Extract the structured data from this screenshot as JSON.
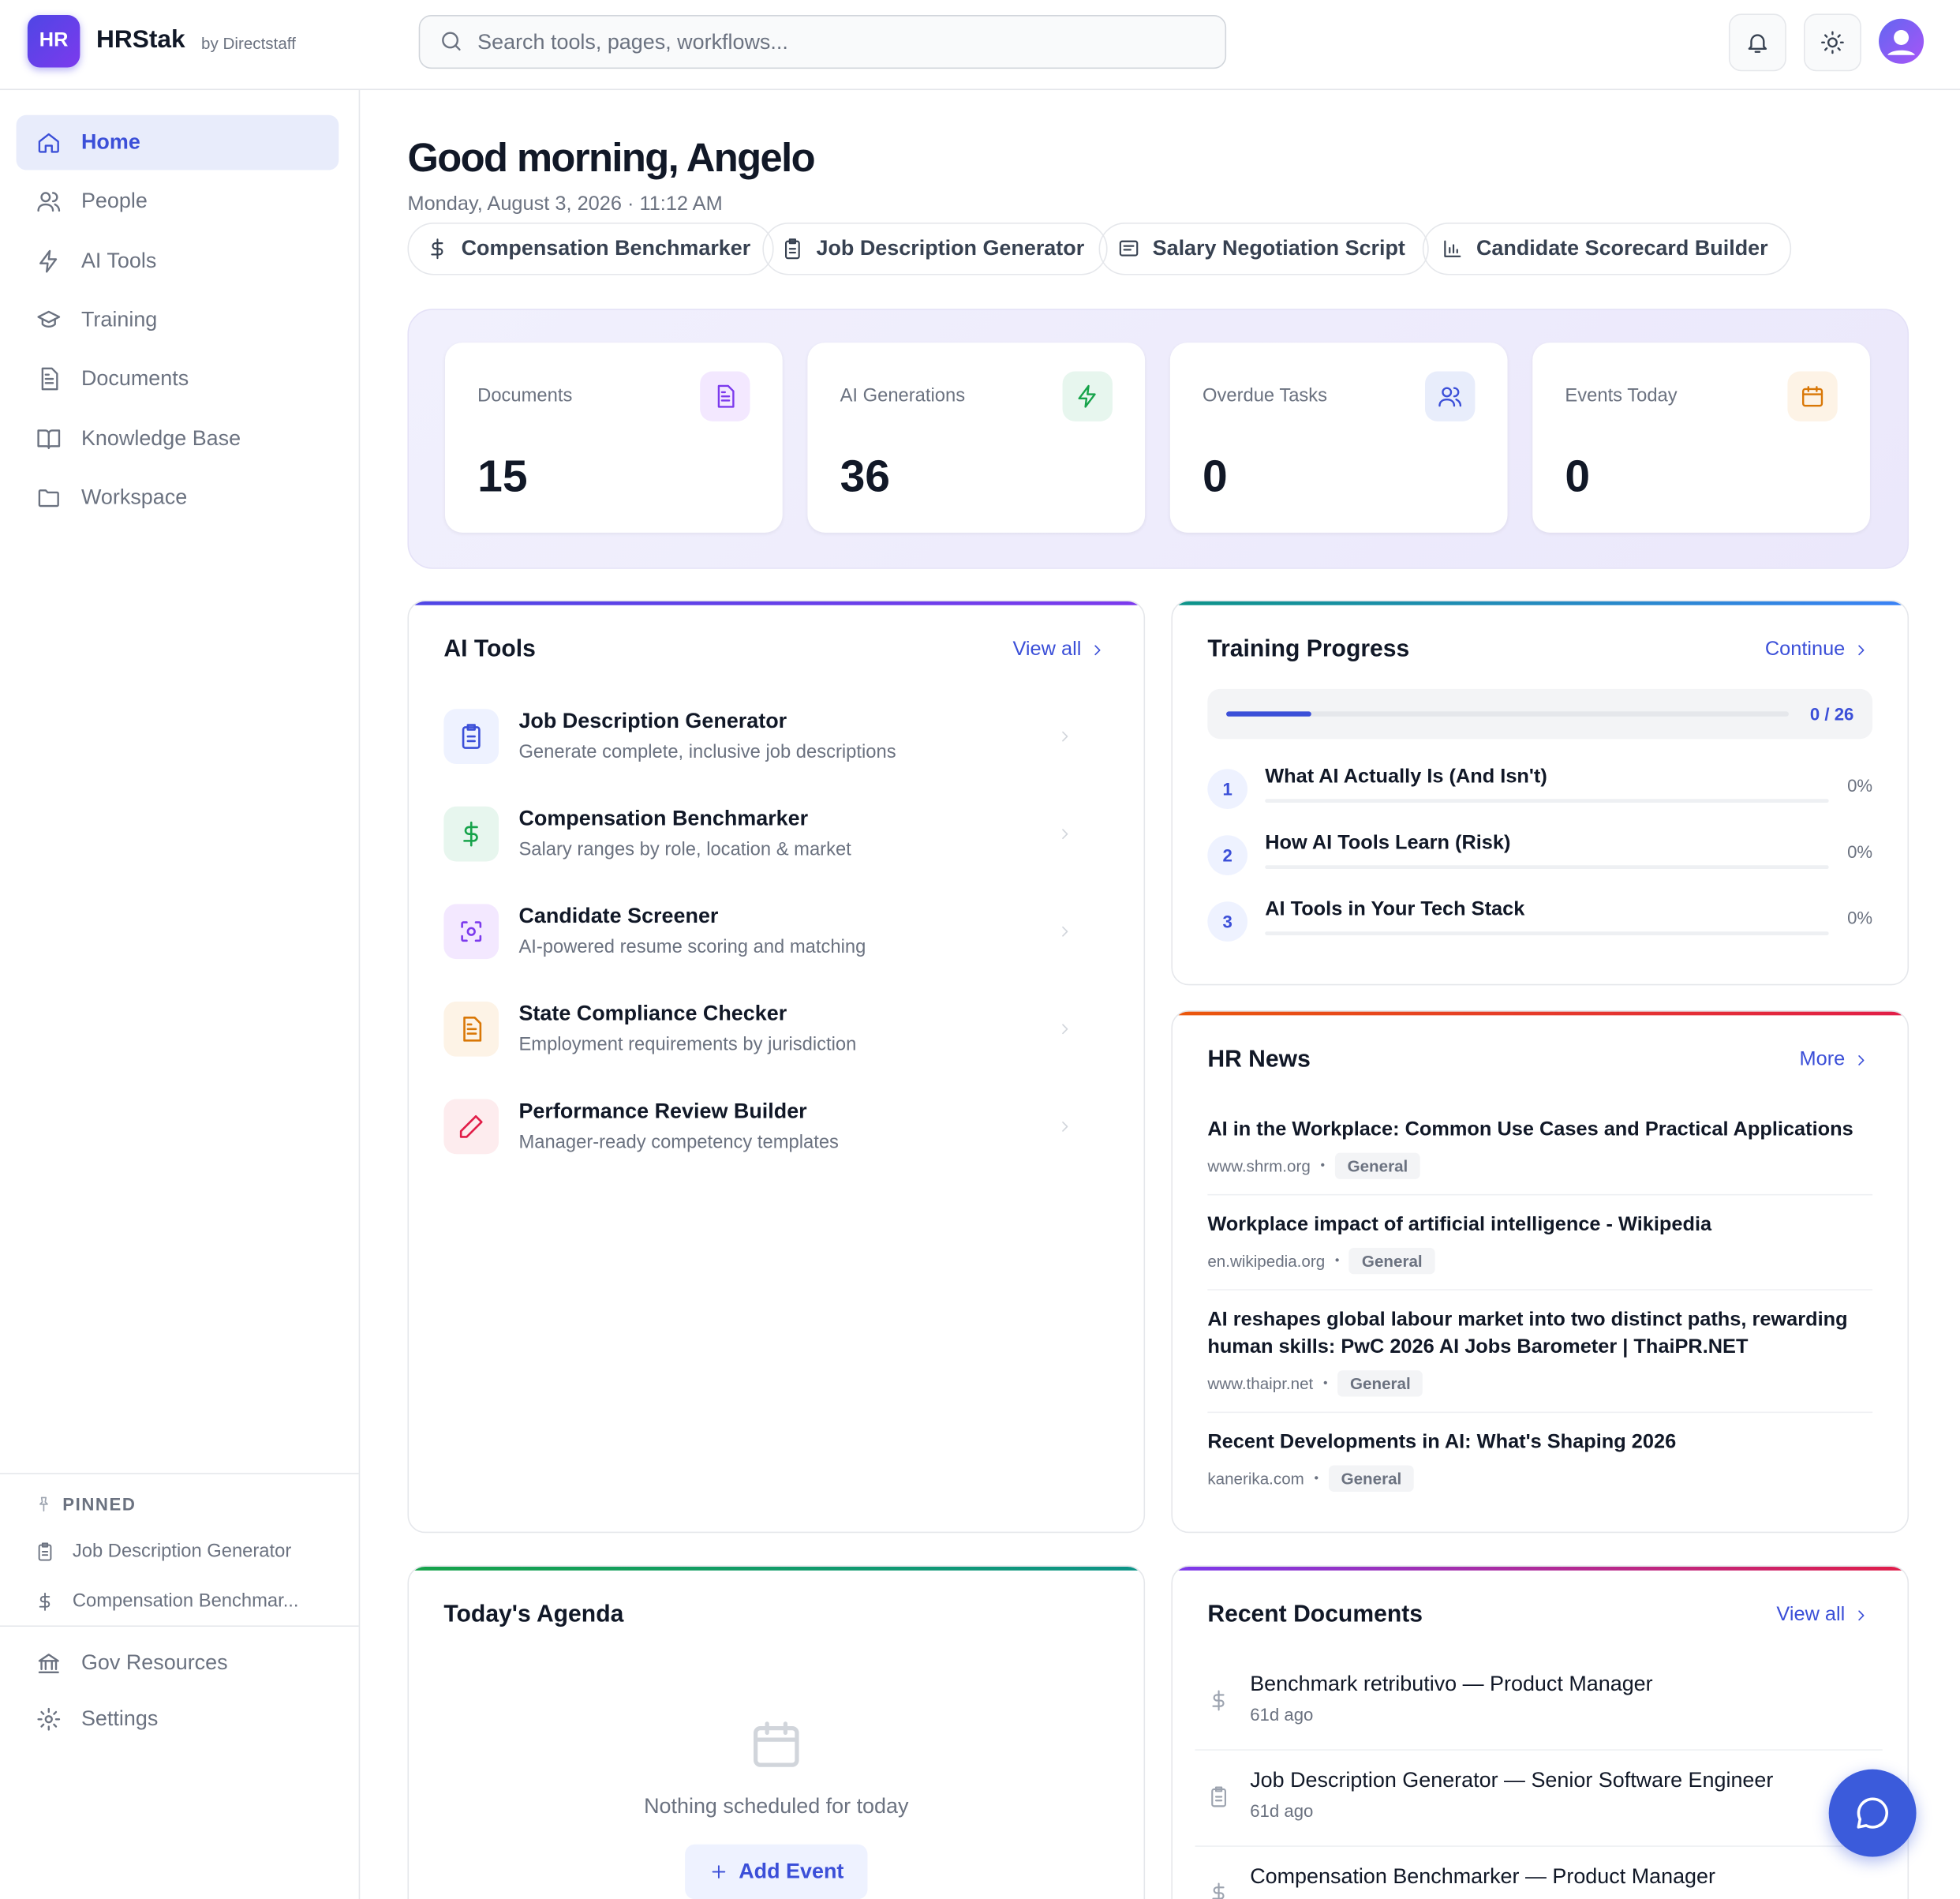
{
  "header": {
    "logo": "HR",
    "brand": "HRStak",
    "by": "by Directstaff",
    "search_placeholder": "Search tools, pages, workflows..."
  },
  "sidebar": {
    "nav": [
      "Home",
      "People",
      "AI Tools",
      "Training",
      "Documents",
      "Knowledge Base",
      "Workspace"
    ],
    "pinned_title": "PINNED",
    "pinned": [
      "Job Description Generator",
      "Compensation Benchmar..."
    ],
    "bottom": [
      "Gov Resources",
      "Settings"
    ]
  },
  "main": {
    "greeting": "Good morning, Angelo",
    "date": "Monday, August 3, 2026 · 11:12 AM",
    "quick_actions": [
      "Compensation Benchmarker",
      "Job Description Generator",
      "Salary Negotiation Script",
      "Candidate Scorecard Builder"
    ],
    "stats": [
      {
        "label": "Documents",
        "value": "15"
      },
      {
        "label": "AI Generations",
        "value": "36"
      },
      {
        "label": "Overdue Tasks",
        "value": "0"
      },
      {
        "label": "Events Today",
        "value": "0"
      }
    ],
    "ai_tools": {
      "title": "AI Tools",
      "link": "View all",
      "items": [
        {
          "name": "Job Description Generator",
          "desc": "Generate complete, inclusive job descriptions"
        },
        {
          "name": "Compensation Benchmarker",
          "desc": "Salary ranges by role, location & market"
        },
        {
          "name": "Candidate Screener",
          "desc": "AI-powered resume scoring and matching"
        },
        {
          "name": "State Compliance Checker",
          "desc": "Employment requirements by jurisdiction"
        },
        {
          "name": "Performance Review Builder",
          "desc": "Manager-ready competency templates"
        }
      ]
    },
    "training": {
      "title": "Training Progress",
      "link": "Continue",
      "progress": "0 / 26",
      "modules": [
        {
          "num": "1",
          "title": "What AI Actually Is (And Isn't)",
          "pct": "0%"
        },
        {
          "num": "2",
          "title": "How AI Tools Learn (Risk)",
          "pct": "0%"
        },
        {
          "num": "3",
          "title": "AI Tools in Your Tech Stack",
          "pct": "0%"
        }
      ]
    },
    "news": {
      "title": "HR News",
      "link": "More",
      "items": [
        {
          "title": "AI in the Workplace: Common Use Cases and Practical Applications",
          "source": "www.shrm.org",
          "tag": "General"
        },
        {
          "title": "Workplace impact of artificial intelligence - Wikipedia",
          "source": "en.wikipedia.org",
          "tag": "General"
        },
        {
          "title": "AI reshapes global labour market into two distinct paths, rewarding human skills: PwC 2026 AI Jobs Barometer | ThaiPR.NET",
          "source": "www.thaipr.net",
          "tag": "General"
        },
        {
          "title": "Recent Developments in AI: What's Shaping 2026",
          "source": "kanerika.com",
          "tag": "General"
        }
      ]
    },
    "agenda": {
      "title": "Today's Agenda",
      "empty": "Nothing scheduled for today",
      "button": "Add Event"
    },
    "recent_docs": {
      "title": "Recent Documents",
      "link": "View all",
      "items": [
        {
          "title": "Benchmark retributivo — Product Manager",
          "age": "61d ago"
        },
        {
          "title": "Job Description Generator — Senior Software Engineer",
          "age": "61d ago"
        },
        {
          "title": "Compensation Benchmarker — Product Manager",
          "age": ""
        }
      ]
    }
  }
}
